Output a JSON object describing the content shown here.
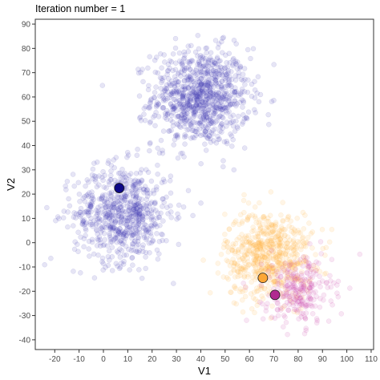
{
  "chart_data": {
    "type": "scatter",
    "title": "Iteration number = 1",
    "xlabel": "V1",
    "ylabel": "V2",
    "xlim": [
      -28,
      111
    ],
    "ylim": [
      -44,
      92
    ],
    "x_ticks": [
      -20,
      -10,
      0,
      10,
      20,
      30,
      40,
      50,
      60,
      70,
      80,
      90,
      100,
      110
    ],
    "y_ticks": [
      -40,
      -30,
      -20,
      -10,
      0,
      10,
      20,
      30,
      40,
      50,
      60,
      70,
      80,
      90
    ],
    "grid": false,
    "legend": "none",
    "colors": {
      "cluster_1": "#3b35b0",
      "cluster_2": "#ffb040",
      "cluster_3": "#cc44aa",
      "centroid_1": "#0d0887",
      "centroid_2": "#fca636",
      "centroid_3": "#b12a90"
    },
    "point_clouds": [
      {
        "group": "cluster_1",
        "center": [
          40,
          60
        ],
        "sd": 10,
        "n": 900,
        "color_key": "cluster_1"
      },
      {
        "group": "cluster_1",
        "center": [
          8,
          12
        ],
        "sd": 10,
        "n": 700,
        "color_key": "cluster_1"
      },
      {
        "group": "cluster_2",
        "center": [
          68,
          -5
        ],
        "sd": 9,
        "n": 650,
        "color_key": "cluster_2"
      },
      {
        "group": "cluster_3",
        "center": [
          80,
          -20
        ],
        "sd": 7,
        "n": 260,
        "color_key": "cluster_3"
      }
    ],
    "centroids": [
      {
        "x": 6.5,
        "y": 22.5,
        "color_key": "centroid_1"
      },
      {
        "x": 65.5,
        "y": -14.5,
        "color_key": "centroid_2"
      },
      {
        "x": 70.5,
        "y": -21.5,
        "color_key": "centroid_3"
      }
    ]
  }
}
